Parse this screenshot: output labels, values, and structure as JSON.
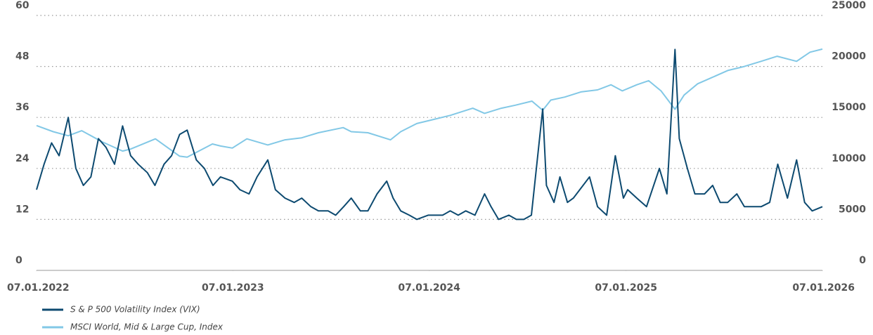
{
  "chart_data": {
    "type": "line",
    "xlim": [
      "2022-01-07",
      "2026-01-07"
    ],
    "xticks": [
      {
        "value": "2022-01-07",
        "label": "07.01.2022"
      },
      {
        "value": "2023-01-07",
        "label": "07.01.2023"
      },
      {
        "value": "2024-01-07",
        "label": "07.01.2024"
      },
      {
        "value": "2025-01-07",
        "label": "07.01.2025"
      },
      {
        "value": "2026-01-07",
        "label": "07.01.2026"
      }
    ],
    "ylim": [
      0,
      60
    ],
    "yticks": [
      0,
      12,
      24,
      36,
      48,
      60
    ],
    "y2lim": [
      0,
      25000
    ],
    "y2ticks": [
      0,
      5000,
      10000,
      15000,
      20000,
      25000
    ],
    "grid": true,
    "legend": "bottom-left",
    "series": [
      {
        "name": "S & P 500 Volatility Index (VIX)",
        "color": "#0d4a70",
        "axis": "y",
        "x": [
          "2022-01-07",
          "2022-01-21",
          "2022-02-04",
          "2022-02-18",
          "2022-03-07",
          "2022-03-21",
          "2022-04-04",
          "2022-04-18",
          "2022-05-02",
          "2022-05-16",
          "2022-06-01",
          "2022-06-16",
          "2022-07-01",
          "2022-07-15",
          "2022-08-01",
          "2022-08-15",
          "2022-09-01",
          "2022-09-15",
          "2022-09-30",
          "2022-10-14",
          "2022-10-31",
          "2022-11-15",
          "2022-12-01",
          "2022-12-15",
          "2023-01-06",
          "2023-01-20",
          "2023-02-06",
          "2023-02-21",
          "2023-03-13",
          "2023-03-27",
          "2023-04-14",
          "2023-05-01",
          "2023-05-15",
          "2023-06-01",
          "2023-06-15",
          "2023-07-03",
          "2023-07-17",
          "2023-08-01",
          "2023-08-15",
          "2023-09-01",
          "2023-09-15",
          "2023-10-02",
          "2023-10-20",
          "2023-11-01",
          "2023-11-15",
          "2023-12-01",
          "2023-12-15",
          "2024-01-05",
          "2024-01-19",
          "2024-02-01",
          "2024-02-15",
          "2024-03-01",
          "2024-03-15",
          "2024-04-01",
          "2024-04-19",
          "2024-05-01",
          "2024-05-15",
          "2024-06-03",
          "2024-06-17",
          "2024-07-01",
          "2024-07-15",
          "2024-08-05",
          "2024-08-12",
          "2024-08-26",
          "2024-09-06",
          "2024-09-20",
          "2024-10-01",
          "2024-10-31",
          "2024-11-15",
          "2024-12-02",
          "2024-12-18",
          "2025-01-02",
          "2025-01-10",
          "2025-01-27",
          "2025-02-14",
          "2025-03-10",
          "2025-03-24",
          "2025-04-08",
          "2025-04-16",
          "2025-05-01",
          "2025-05-15",
          "2025-06-02",
          "2025-06-17",
          "2025-07-01",
          "2025-07-15",
          "2025-08-01",
          "2025-08-15",
          "2025-09-01",
          "2025-09-15",
          "2025-10-01",
          "2025-10-16",
          "2025-11-03",
          "2025-11-20",
          "2025-12-05",
          "2025-12-19",
          "2026-01-07"
        ],
        "values": [
          19,
          25,
          30,
          27,
          36,
          24,
          20,
          22,
          31,
          29,
          25,
          34,
          27,
          25,
          23,
          20,
          25,
          27,
          32,
          33,
          26,
          24,
          20,
          22,
          21,
          19,
          18,
          22,
          26,
          19,
          17,
          16,
          17,
          15,
          14,
          14,
          13,
          15,
          17,
          14,
          14,
          18,
          21,
          17,
          14,
          13,
          12,
          13,
          13,
          13,
          14,
          13,
          14,
          13,
          18,
          15,
          12,
          13,
          12,
          12,
          13,
          38,
          20,
          16,
          22,
          16,
          17,
          22,
          15,
          13,
          27,
          17,
          19,
          17,
          15,
          24,
          18,
          52,
          31,
          24,
          18,
          18,
          20,
          16,
          16,
          18,
          15,
          15,
          15,
          16,
          25,
          17,
          26,
          16,
          14,
          15
        ]
      },
      {
        "name": "MSCI World, Mid & Large Cup, Index",
        "color": "#82c8e6",
        "axis": "y2",
        "x": [
          "2022-01-07",
          "2022-02-07",
          "2022-03-07",
          "2022-04-01",
          "2022-05-09",
          "2022-06-16",
          "2022-07-01",
          "2022-08-16",
          "2022-09-30",
          "2022-10-14",
          "2022-11-30",
          "2022-12-15",
          "2023-01-06",
          "2023-02-02",
          "2023-03-13",
          "2023-04-14",
          "2023-05-15",
          "2023-06-15",
          "2023-07-31",
          "2023-08-15",
          "2023-09-15",
          "2023-10-27",
          "2023-11-15",
          "2023-12-15",
          "2024-01-15",
          "2024-02-15",
          "2024-03-28",
          "2024-04-19",
          "2024-05-20",
          "2024-06-15",
          "2024-07-16",
          "2024-08-05",
          "2024-08-20",
          "2024-09-15",
          "2024-10-15",
          "2024-11-15",
          "2024-12-10",
          "2024-12-31",
          "2025-01-27",
          "2025-02-18",
          "2025-03-13",
          "2025-04-08",
          "2025-04-25",
          "2025-05-20",
          "2025-06-15",
          "2025-07-15",
          "2025-08-15",
          "2025-09-15",
          "2025-10-15",
          "2025-11-20",
          "2025-12-15",
          "2026-01-07"
        ],
        "values": [
          14200,
          13600,
          13200,
          13700,
          12600,
          11700,
          11900,
          12900,
          11200,
          11100,
          12400,
          12200,
          12000,
          12900,
          12300,
          12800,
          13000,
          13500,
          14000,
          13600,
          13500,
          12800,
          13600,
          14400,
          14800,
          15200,
          15900,
          15400,
          15900,
          16200,
          16600,
          15700,
          16700,
          17000,
          17500,
          17700,
          18200,
          17600,
          18200,
          18600,
          17600,
          15800,
          17200,
          18300,
          18900,
          19600,
          20000,
          20500,
          21000,
          20500,
          21400,
          21700
        ]
      }
    ]
  }
}
